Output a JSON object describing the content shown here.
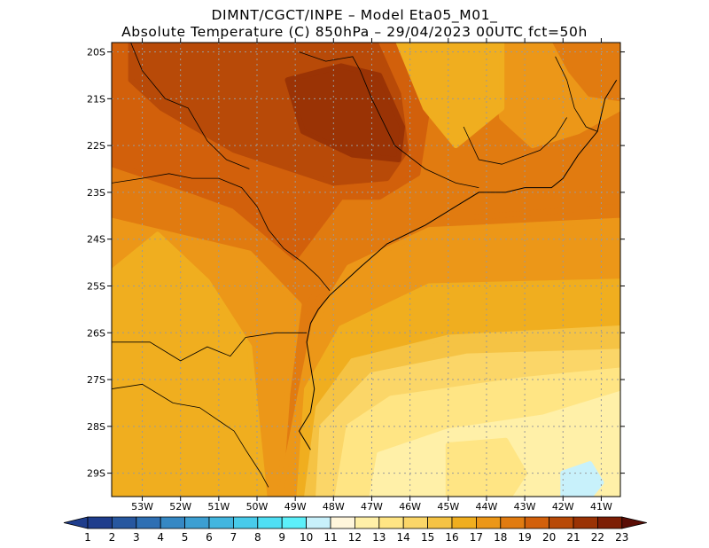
{
  "title": {
    "line1": "DIMNT/CGCT/INPE –  Model Eta05_M01_",
    "line2": "Absolute Temperature (C) 850hPa –  29/04/2023 00UTC fct=50h"
  },
  "map": {
    "lon_range": [
      -53.8,
      -40.5
    ],
    "lat_range": [
      -29.5,
      -19.8
    ],
    "lon_ticks": [
      {
        "value": -53,
        "label": "53W"
      },
      {
        "value": -52,
        "label": "52W"
      },
      {
        "value": -51,
        "label": "51W"
      },
      {
        "value": -50,
        "label": "50W"
      },
      {
        "value": -49,
        "label": "49W"
      },
      {
        "value": -48,
        "label": "48W"
      },
      {
        "value": -47,
        "label": "47W"
      },
      {
        "value": -46,
        "label": "46W"
      },
      {
        "value": -45,
        "label": "45W"
      },
      {
        "value": -44,
        "label": "44W"
      },
      {
        "value": -43,
        "label": "43W"
      },
      {
        "value": -42,
        "label": "42W"
      },
      {
        "value": -41,
        "label": "41W"
      }
    ],
    "lat_ticks": [
      {
        "value": -20,
        "label": "20S"
      },
      {
        "value": -21,
        "label": "21S"
      },
      {
        "value": -22,
        "label": "22S"
      },
      {
        "value": -23,
        "label": "23S"
      },
      {
        "value": -24,
        "label": "24S"
      },
      {
        "value": -25,
        "label": "25S"
      },
      {
        "value": -26,
        "label": "26S"
      },
      {
        "value": -27,
        "label": "27S"
      },
      {
        "value": -28,
        "label": "28S"
      },
      {
        "value": -29,
        "label": "29S"
      }
    ],
    "gridlines": "dotted",
    "field_areas": [
      {
        "level": 18,
        "lonlat": [
          [
            -53.8,
            -19.8
          ],
          [
            -40.5,
            -19.8
          ],
          [
            -40.5,
            -23.3
          ],
          [
            -45.5,
            -23.6
          ],
          [
            -48.5,
            -25.2
          ],
          [
            -49.5,
            -26.5
          ],
          [
            -49.6,
            -29.5
          ],
          [
            -53.8,
            -29.5
          ]
        ]
      },
      {
        "level": 19,
        "lonlat": [
          [
            -53.8,
            -19.8
          ],
          [
            -46.3,
            -19.8
          ],
          [
            -45.5,
            -21.0
          ],
          [
            -45.8,
            -22.6
          ],
          [
            -46.8,
            -23.1
          ],
          [
            -47.8,
            -23.1
          ],
          [
            -49.0,
            -24.4
          ],
          [
            -50.6,
            -23.3
          ],
          [
            -51.6,
            -23.0
          ],
          [
            -53.8,
            -22.4
          ]
        ]
      },
      {
        "level": 20,
        "lonlat": [
          [
            -53.3,
            -19.8
          ],
          [
            -46.9,
            -19.8
          ],
          [
            -46.3,
            -20.9
          ],
          [
            -46.1,
            -22.1
          ],
          [
            -46.6,
            -22.7
          ],
          [
            -48.0,
            -22.8
          ],
          [
            -50.6,
            -22.1
          ],
          [
            -52.5,
            -21.2
          ],
          [
            -53.3,
            -20.6
          ]
        ]
      },
      {
        "level": 21,
        "lonlat": [
          [
            -49.2,
            -20.6
          ],
          [
            -47.8,
            -20.3
          ],
          [
            -46.8,
            -20.5
          ],
          [
            -46.2,
            -21.6
          ],
          [
            -46.3,
            -22.3
          ],
          [
            -47.5,
            -22.2
          ],
          [
            -48.8,
            -21.7
          ]
        ]
      },
      {
        "level": 17,
        "lonlat": [
          [
            -53.8,
            -23.6
          ],
          [
            -50.2,
            -24.3
          ],
          [
            -48.9,
            -25.4
          ],
          [
            -49.2,
            -27.3
          ],
          [
            -49.4,
            -29.5
          ],
          [
            -53.8,
            -29.5
          ]
        ]
      },
      {
        "level": 16,
        "lonlat": [
          [
            -53.8,
            -24.7
          ],
          [
            -52.6,
            -23.9
          ],
          [
            -51.3,
            -24.9
          ],
          [
            -50.2,
            -26.3
          ],
          [
            -50.0,
            -27.9
          ],
          [
            -49.8,
            -29.5
          ],
          [
            -53.8,
            -29.5
          ]
        ]
      },
      {
        "level": 17,
        "lonlat": [
          [
            -43.9,
            -19.8
          ],
          [
            -40.5,
            -19.8
          ],
          [
            -40.5,
            -21.2
          ],
          [
            -41.6,
            -21.7
          ],
          [
            -42.8,
            -22.0
          ],
          [
            -43.6,
            -21.4
          ]
        ]
      },
      {
        "level": 18,
        "lonlat": [
          [
            -42.2,
            -19.8
          ],
          [
            -40.5,
            -19.8
          ],
          [
            -40.5,
            -21.0
          ],
          [
            -41.3,
            -20.9
          ],
          [
            -41.8,
            -20.4
          ]
        ]
      },
      {
        "level": 16,
        "lonlat": [
          [
            -46.3,
            -19.8
          ],
          [
            -43.6,
            -19.8
          ],
          [
            -43.6,
            -21.2
          ],
          [
            -44.8,
            -22.0
          ],
          [
            -45.6,
            -21.2
          ]
        ]
      },
      {
        "level": 17,
        "lonlat": [
          [
            -40.5,
            -23.6
          ],
          [
            -45.5,
            -23.8
          ],
          [
            -47.6,
            -24.6
          ],
          [
            -48.5,
            -25.8
          ],
          [
            -49.4,
            -29.5
          ],
          [
            -40.5,
            -29.5
          ]
        ]
      },
      {
        "level": 16,
        "lonlat": [
          [
            -40.5,
            -24.9
          ],
          [
            -45.5,
            -25.0
          ],
          [
            -47.8,
            -25.9
          ],
          [
            -48.7,
            -27.2
          ],
          [
            -48.9,
            -29.5
          ],
          [
            -40.5,
            -29.5
          ]
        ]
      },
      {
        "level": 15,
        "lonlat": [
          [
            -40.5,
            -25.9
          ],
          [
            -45.0,
            -26.1
          ],
          [
            -47.5,
            -26.6
          ],
          [
            -48.4,
            -27.6
          ],
          [
            -48.7,
            -29.5
          ],
          [
            -40.5,
            -29.5
          ]
        ]
      },
      {
        "level": 14,
        "lonlat": [
          [
            -40.5,
            -26.4
          ],
          [
            -44.5,
            -26.5
          ],
          [
            -47.0,
            -26.9
          ],
          [
            -48.3,
            -28.0
          ],
          [
            -48.4,
            -29.5
          ],
          [
            -40.5,
            -29.5
          ]
        ]
      },
      {
        "level": 13,
        "lonlat": [
          [
            -40.5,
            -26.8
          ],
          [
            -43.0,
            -27.0
          ],
          [
            -46.5,
            -27.4
          ],
          [
            -47.6,
            -28.0
          ],
          [
            -47.9,
            -29.5
          ],
          [
            -40.5,
            -29.5
          ]
        ]
      },
      {
        "level": 12,
        "lonlat": [
          [
            -40.5,
            -27.3
          ],
          [
            -42.5,
            -27.8
          ],
          [
            -45.0,
            -28.1
          ],
          [
            -46.8,
            -28.6
          ],
          [
            -47.0,
            -29.5
          ],
          [
            -40.5,
            -29.5
          ]
        ]
      },
      {
        "level": 13,
        "lonlat": [
          [
            -45.0,
            -28.4
          ],
          [
            -43.5,
            -28.3
          ],
          [
            -43.0,
            -29.0
          ],
          [
            -43.4,
            -29.5
          ],
          [
            -45.0,
            -29.5
          ]
        ]
      },
      {
        "level": 10,
        "lonlat": [
          [
            -42.0,
            -29.0
          ],
          [
            -41.3,
            -28.8
          ],
          [
            -41.0,
            -29.2
          ],
          [
            -41.3,
            -29.5
          ],
          [
            -42.0,
            -29.5
          ]
        ]
      }
    ],
    "coastline": [
      [
        -48.6,
        -28.5
      ],
      [
        -48.9,
        -28.1
      ],
      [
        -48.6,
        -27.7
      ],
      [
        -48.5,
        -27.2
      ],
      [
        -48.6,
        -26.7
      ],
      [
        -48.7,
        -26.2
      ],
      [
        -48.6,
        -25.8
      ],
      [
        -48.4,
        -25.5
      ],
      [
        -48.1,
        -25.2
      ],
      [
        -47.7,
        -24.9
      ],
      [
        -47.3,
        -24.6
      ],
      [
        -46.6,
        -24.1
      ],
      [
        -46.1,
        -23.9
      ],
      [
        -45.6,
        -23.7
      ],
      [
        -45.2,
        -23.5
      ],
      [
        -44.8,
        -23.3
      ],
      [
        -44.2,
        -23.0
      ],
      [
        -43.5,
        -23.0
      ],
      [
        -43.0,
        -22.9
      ],
      [
        -42.3,
        -22.9
      ],
      [
        -42.0,
        -22.7
      ],
      [
        -41.6,
        -22.2
      ],
      [
        -41.1,
        -21.7
      ],
      [
        -40.9,
        -21.0
      ],
      [
        -40.6,
        -20.6
      ]
    ],
    "borders": [
      [
        [
          -53.8,
          -26.2
        ],
        [
          -52.8,
          -26.2
        ],
        [
          -52.0,
          -26.6
        ],
        [
          -51.3,
          -26.3
        ],
        [
          -50.7,
          -26.5
        ],
        [
          -50.3,
          -26.1
        ],
        [
          -49.5,
          -26.0
        ],
        [
          -48.7,
          -26.0
        ]
      ],
      [
        [
          -53.8,
          -27.2
        ],
        [
          -53.0,
          -27.1
        ],
        [
          -52.2,
          -27.5
        ],
        [
          -51.5,
          -27.6
        ],
        [
          -50.6,
          -28.1
        ],
        [
          -50.3,
          -28.5
        ],
        [
          -49.9,
          -29.0
        ],
        [
          -49.7,
          -29.3
        ]
      ],
      [
        [
          -53.8,
          -22.8
        ],
        [
          -53.0,
          -22.7
        ],
        [
          -52.3,
          -22.6
        ],
        [
          -51.7,
          -22.7
        ],
        [
          -51.0,
          -22.7
        ],
        [
          -50.4,
          -22.9
        ],
        [
          -50.0,
          -23.3
        ],
        [
          -49.7,
          -23.8
        ],
        [
          -49.3,
          -24.2
        ],
        [
          -48.8,
          -24.5
        ],
        [
          -48.4,
          -24.8
        ],
        [
          -48.1,
          -25.1
        ]
      ],
      [
        [
          -53.3,
          -19.8
        ],
        [
          -53.0,
          -20.4
        ],
        [
          -52.4,
          -21.0
        ],
        [
          -51.8,
          -21.2
        ],
        [
          -51.3,
          -21.9
        ],
        [
          -50.8,
          -22.3
        ],
        [
          -50.2,
          -22.5
        ]
      ],
      [
        [
          -48.9,
          -20.0
        ],
        [
          -48.2,
          -20.2
        ],
        [
          -47.5,
          -20.1
        ],
        [
          -47.3,
          -20.4
        ],
        [
          -47.0,
          -21.0
        ],
        [
          -46.7,
          -21.5
        ],
        [
          -46.4,
          -22.0
        ],
        [
          -45.6,
          -22.5
        ],
        [
          -44.8,
          -22.8
        ],
        [
          -44.2,
          -22.9
        ]
      ],
      [
        [
          -42.2,
          -20.1
        ],
        [
          -41.9,
          -20.6
        ],
        [
          -41.7,
          -21.2
        ],
        [
          -41.4,
          -21.6
        ],
        [
          -41.1,
          -21.7
        ]
      ],
      [
        [
          -44.6,
          -21.6
        ],
        [
          -44.2,
          -22.3
        ],
        [
          -43.6,
          -22.4
        ],
        [
          -42.6,
          -22.1
        ],
        [
          -42.2,
          -21.8
        ],
        [
          -41.9,
          -21.4
        ]
      ]
    ]
  },
  "colorbar": {
    "labels": [
      "1",
      "2",
      "3",
      "4",
      "5",
      "6",
      "7",
      "8",
      "9",
      "10",
      "11",
      "12",
      "13",
      "14",
      "15",
      "16",
      "17",
      "18",
      "19",
      "20",
      "21",
      "22",
      "23"
    ],
    "colors": [
      "#1f3d8c",
      "#27579f",
      "#2e6fb3",
      "#3588c4",
      "#3c9fd2",
      "#42b6df",
      "#48cbea",
      "#4fdff4",
      "#5cf0fa",
      "#c8f1fb",
      "#fff6dc",
      "#fff0a8",
      "#ffe584",
      "#fbd668",
      "#f5c344",
      "#f0ae1f",
      "#ec9718",
      "#e17b10",
      "#d2600b",
      "#b84a08",
      "#9a3305",
      "#7d1f05",
      "#5a0d05"
    ]
  }
}
